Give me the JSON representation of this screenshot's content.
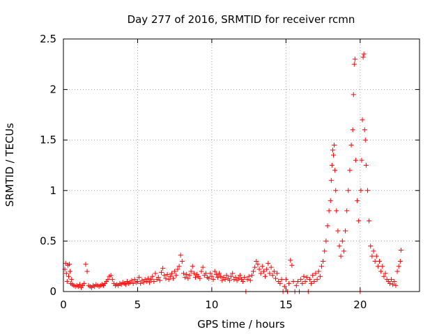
{
  "chart_data": {
    "type": "scatter",
    "title": "Day 277 of 2016, SRMTID for receiver rcmn",
    "xlabel": "GPS time / hours",
    "ylabel": "SRMTID / TECUs",
    "xlim": [
      0,
      24
    ],
    "ylim": [
      0,
      2.5
    ],
    "xticks": [
      0,
      5,
      10,
      15,
      20
    ],
    "yticks": [
      0,
      0.5,
      1,
      1.5,
      2,
      2.5
    ],
    "xtick_labels": [
      "0",
      "5",
      "10",
      "15",
      "20"
    ],
    "ytick_labels": [
      "0",
      "0.5",
      "1",
      "1.5",
      "2",
      "2.5"
    ],
    "grid": true,
    "marker": "+",
    "color": "#ff0000",
    "series": [
      {
        "name": "SRMTID",
        "points": [
          [
            0.1,
            0.22
          ],
          [
            0.15,
            0.28
          ],
          [
            0.2,
            0.18
          ],
          [
            0.25,
            0.1
          ],
          [
            0.3,
            0.26
          ],
          [
            0.35,
            0.15
          ],
          [
            0.4,
            0.27
          ],
          [
            0.45,
            0.2
          ],
          [
            0.5,
            0.08
          ],
          [
            0.55,
            0.12
          ],
          [
            0.6,
            0.07
          ],
          [
            0.7,
            0.06
          ],
          [
            0.8,
            0.05
          ],
          [
            0.9,
            0.06
          ],
          [
            1.0,
            0.05
          ],
          [
            1.1,
            0.07
          ],
          [
            1.2,
            0.04
          ],
          [
            1.3,
            0.06
          ],
          [
            1.4,
            0.08
          ],
          [
            1.5,
            0.27
          ],
          [
            1.6,
            0.2
          ],
          [
            1.7,
            0.06
          ],
          [
            1.8,
            0.05
          ],
          [
            1.9,
            0.04
          ],
          [
            2.0,
            0.06
          ],
          [
            2.1,
            0.05
          ],
          [
            2.2,
            0.07
          ],
          [
            2.3,
            0.06
          ],
          [
            2.4,
            0.05
          ],
          [
            2.5,
            0.06
          ],
          [
            2.6,
            0.07
          ],
          [
            2.7,
            0.06
          ],
          [
            2.8,
            0.08
          ],
          [
            2.9,
            0.1
          ],
          [
            3.0,
            0.12
          ],
          [
            3.1,
            0.15
          ],
          [
            3.2,
            0.16
          ],
          [
            3.3,
            0.12
          ],
          [
            3.4,
            0.08
          ],
          [
            3.5,
            0.06
          ],
          [
            3.6,
            0.07
          ],
          [
            3.7,
            0.06
          ],
          [
            3.8,
            0.08
          ],
          [
            3.9,
            0.07
          ],
          [
            4.0,
            0.09
          ],
          [
            4.1,
            0.08
          ],
          [
            4.2,
            0.07
          ],
          [
            4.3,
            0.1
          ],
          [
            4.4,
            0.08
          ],
          [
            4.5,
            0.09
          ],
          [
            4.6,
            0.11
          ],
          [
            4.7,
            0.08
          ],
          [
            4.8,
            0.12
          ],
          [
            4.9,
            0.09
          ],
          [
            5.0,
            0.1
          ],
          [
            5.1,
            0.14
          ],
          [
            5.2,
            0.08
          ],
          [
            5.3,
            0.11
          ],
          [
            5.4,
            0.09
          ],
          [
            5.5,
            0.12
          ],
          [
            5.6,
            0.1
          ],
          [
            5.7,
            0.13
          ],
          [
            5.8,
            0.09
          ],
          [
            5.9,
            0.12
          ],
          [
            6.0,
            0.15
          ],
          [
            6.1,
            0.1
          ],
          [
            6.2,
            0.18
          ],
          [
            6.3,
            0.12
          ],
          [
            6.4,
            0.14
          ],
          [
            6.5,
            0.11
          ],
          [
            6.6,
            0.19
          ],
          [
            6.7,
            0.23
          ],
          [
            6.8,
            0.16
          ],
          [
            6.9,
            0.13
          ],
          [
            7.0,
            0.17
          ],
          [
            7.1,
            0.12
          ],
          [
            7.2,
            0.15
          ],
          [
            7.3,
            0.18
          ],
          [
            7.4,
            0.13
          ],
          [
            7.5,
            0.2
          ],
          [
            7.6,
            0.16
          ],
          [
            7.7,
            0.22
          ],
          [
            7.8,
            0.25
          ],
          [
            7.9,
            0.36
          ],
          [
            8.0,
            0.3
          ],
          [
            8.1,
            0.18
          ],
          [
            8.2,
            0.14
          ],
          [
            8.3,
            0.17
          ],
          [
            8.4,
            0.13
          ],
          [
            8.5,
            0.16
          ],
          [
            8.6,
            0.2
          ],
          [
            8.7,
            0.25
          ],
          [
            8.8,
            0.18
          ],
          [
            8.9,
            0.14
          ],
          [
            9.0,
            0.17
          ],
          [
            9.1,
            0.15
          ],
          [
            9.2,
            0.13
          ],
          [
            9.3,
            0.2
          ],
          [
            9.4,
            0.24
          ],
          [
            9.5,
            0.16
          ],
          [
            9.6,
            0.18
          ],
          [
            9.7,
            0.14
          ],
          [
            9.8,
            0.13
          ],
          [
            9.9,
            0.18
          ],
          [
            10.0,
            0.15
          ],
          [
            10.1,
            0.12
          ],
          [
            10.2,
            0.2
          ],
          [
            10.3,
            0.17
          ],
          [
            10.4,
            0.14
          ],
          [
            10.5,
            0.18
          ],
          [
            10.6,
            0.15
          ],
          [
            10.7,
            0.11
          ],
          [
            10.8,
            0.14
          ],
          [
            10.9,
            0.12
          ],
          [
            11.0,
            0.16
          ],
          [
            11.1,
            0.13
          ],
          [
            11.2,
            0.11
          ],
          [
            11.3,
            0.15
          ],
          [
            11.4,
            0.18
          ],
          [
            11.5,
            0.12
          ],
          [
            11.6,
            0.14
          ],
          [
            11.7,
            0.11
          ],
          [
            11.8,
            0.13
          ],
          [
            11.9,
            0.16
          ],
          [
            12.0,
            0.12
          ],
          [
            12.1,
            0.1
          ],
          [
            12.2,
            0.14
          ],
          [
            12.3,
            0.0
          ],
          [
            12.4,
            0.12
          ],
          [
            12.5,
            0.15
          ],
          [
            12.6,
            0.11
          ],
          [
            12.7,
            0.16
          ],
          [
            12.8,
            0.2
          ],
          [
            12.9,
            0.24
          ],
          [
            13.0,
            0.3
          ],
          [
            13.1,
            0.27
          ],
          [
            13.2,
            0.22
          ],
          [
            13.3,
            0.18
          ],
          [
            13.4,
            0.25
          ],
          [
            13.5,
            0.2
          ],
          [
            13.6,
            0.15
          ],
          [
            13.7,
            0.22
          ],
          [
            13.8,
            0.28
          ],
          [
            13.9,
            0.18
          ],
          [
            14.0,
            0.24
          ],
          [
            14.1,
            0.16
          ],
          [
            14.2,
            0.2
          ],
          [
            14.3,
            0.13
          ],
          [
            14.4,
            0.18
          ],
          [
            14.5,
            0.1
          ],
          [
            14.6,
            0.08
          ],
          [
            14.7,
            0.12
          ],
          [
            14.8,
            0.0
          ],
          [
            14.9,
            0.05
          ],
          [
            15.0,
            0.12
          ],
          [
            15.1,
            0.0
          ],
          [
            15.2,
            0.08
          ],
          [
            15.3,
            0.31
          ],
          [
            15.4,
            0.26
          ],
          [
            15.5,
            0.1
          ],
          [
            15.6,
            0.0
          ],
          [
            15.7,
            0.06
          ],
          [
            15.8,
            0.1
          ],
          [
            15.9,
            0.0
          ],
          [
            16.0,
            0.12
          ],
          [
            16.1,
            0.08
          ],
          [
            16.2,
            0.15
          ],
          [
            16.3,
            0.1
          ],
          [
            16.4,
            0.14
          ],
          [
            16.5,
            0.0
          ],
          [
            16.6,
            0.12
          ],
          [
            16.7,
            0.08
          ],
          [
            16.8,
            0.16
          ],
          [
            16.9,
            0.1
          ],
          [
            17.0,
            0.18
          ],
          [
            17.1,
            0.12
          ],
          [
            17.2,
            0.2
          ],
          [
            17.3,
            0.15
          ],
          [
            17.4,
            0.25
          ],
          [
            17.5,
            0.3
          ],
          [
            17.6,
            0.4
          ],
          [
            17.7,
            0.5
          ],
          [
            17.8,
            0.65
          ],
          [
            17.9,
            0.8
          ],
          [
            18.0,
            0.9
          ],
          [
            18.05,
            1.1
          ],
          [
            18.1,
            1.25
          ],
          [
            18.15,
            1.4
          ],
          [
            18.2,
            1.35
          ],
          [
            18.25,
            1.45
          ],
          [
            18.3,
            1.2
          ],
          [
            18.35,
            1.0
          ],
          [
            18.4,
            0.8
          ],
          [
            18.5,
            0.6
          ],
          [
            18.6,
            0.45
          ],
          [
            18.7,
            0.35
          ],
          [
            18.8,
            0.5
          ],
          [
            18.9,
            0.4
          ],
          [
            19.0,
            0.6
          ],
          [
            19.1,
            0.8
          ],
          [
            19.2,
            1.0
          ],
          [
            19.3,
            1.2
          ],
          [
            19.4,
            1.45
          ],
          [
            19.5,
            1.6
          ],
          [
            19.55,
            1.95
          ],
          [
            19.6,
            2.25
          ],
          [
            19.65,
            2.3
          ],
          [
            19.7,
            1.3
          ],
          [
            19.8,
            0.9
          ],
          [
            19.9,
            0.7
          ],
          [
            20.0,
            0.0
          ],
          [
            20.05,
            1.0
          ],
          [
            20.1,
            1.3
          ],
          [
            20.15,
            1.7
          ],
          [
            20.2,
            2.32
          ],
          [
            20.25,
            2.35
          ],
          [
            20.3,
            1.6
          ],
          [
            20.35,
            1.5
          ],
          [
            20.4,
            1.25
          ],
          [
            20.5,
            1.0
          ],
          [
            20.6,
            0.7
          ],
          [
            20.7,
            0.45
          ],
          [
            20.8,
            0.35
          ],
          [
            20.9,
            0.4
          ],
          [
            21.0,
            0.3
          ],
          [
            21.1,
            0.35
          ],
          [
            21.2,
            0.25
          ],
          [
            21.3,
            0.3
          ],
          [
            21.4,
            0.2
          ],
          [
            21.5,
            0.25
          ],
          [
            21.6,
            0.15
          ],
          [
            21.7,
            0.18
          ],
          [
            21.8,
            0.12
          ],
          [
            21.9,
            0.1
          ],
          [
            22.0,
            0.08
          ],
          [
            22.1,
            0.12
          ],
          [
            22.2,
            0.07
          ],
          [
            22.3,
            0.1
          ],
          [
            22.4,
            0.06
          ],
          [
            22.5,
            0.2
          ],
          [
            22.6,
            0.25
          ],
          [
            22.7,
            0.3
          ],
          [
            22.75,
            0.41
          ]
        ]
      }
    ]
  }
}
